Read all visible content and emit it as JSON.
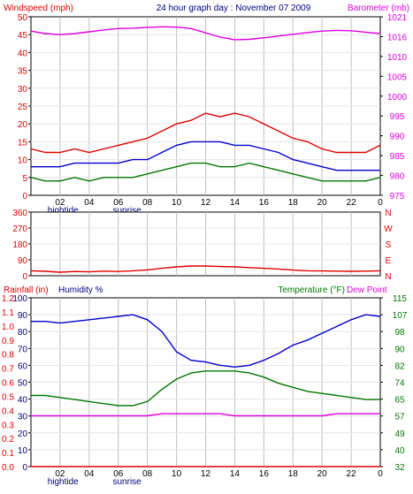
{
  "colors": {
    "background": "#ffffff",
    "plot_background": "#ffffff",
    "grid": "#c0c0c0",
    "frame": "#000000",
    "red": "#e00000",
    "blue": "#0000cc",
    "green": "#007700",
    "magenta": "#dd00dd",
    "darkblue": "#000080"
  },
  "chart_data": [
    {
      "type": "line",
      "title": "24 hour graph day : November 07 2009",
      "left_axis_label": "Windspeed (mph)",
      "right_axis_label": "Barometer (mb)",
      "ylim_left": [
        0,
        50
      ],
      "ylim_right": [
        975,
        1025
      ],
      "yticks_left": [
        "0",
        "5",
        "10",
        "15",
        "20",
        "25",
        "30",
        "35",
        "40",
        "45",
        "50"
      ],
      "yticks_right": [
        "975",
        "980",
        "985",
        "990",
        "995",
        "1000",
        "1005",
        "1010",
        "1016",
        "1021"
      ],
      "hour_ticks": [
        "02",
        "04",
        "06",
        "08",
        "10",
        "12",
        "14",
        "16",
        "18",
        "20",
        "22",
        "0"
      ],
      "events": [
        {
          "label": "hightide",
          "hour": 2.2
        },
        {
          "label": "sunrise",
          "hour": 6.6
        }
      ],
      "x": [
        0,
        1,
        2,
        3,
        4,
        5,
        6,
        7,
        8,
        9,
        10,
        11,
        12,
        13,
        14,
        15,
        16,
        17,
        18,
        19,
        20,
        21,
        22,
        23,
        24
      ],
      "series": [
        {
          "key": "gust",
          "color": "red",
          "axis": "left",
          "values": [
            13,
            12,
            12,
            13,
            12,
            13,
            14,
            15,
            16,
            18,
            20,
            21,
            23,
            22,
            23,
            22,
            20,
            18,
            16,
            15,
            13,
            12,
            12,
            12,
            14
          ]
        },
        {
          "key": "speed",
          "color": "blue",
          "axis": "left",
          "values": [
            8,
            8,
            8,
            9,
            9,
            9,
            9,
            10,
            10,
            12,
            14,
            15,
            15,
            15,
            14,
            14,
            13,
            12,
            10,
            9,
            8,
            7,
            7,
            7,
            7
          ]
        },
        {
          "key": "direction_avg",
          "color": "green",
          "axis": "left",
          "values": [
            5,
            4,
            4,
            5,
            4,
            5,
            5,
            5,
            6,
            7,
            8,
            9,
            9,
            8,
            8,
            9,
            8,
            7,
            6,
            5,
            4,
            4,
            4,
            4,
            5
          ]
        },
        {
          "key": "barometer",
          "color": "magenta",
          "axis": "right",
          "values": [
            1021.0,
            1020.3,
            1020.0,
            1020.3,
            1020.8,
            1021.3,
            1021.7,
            1021.8,
            1022.0,
            1022.2,
            1022.1,
            1021.7,
            1020.5,
            1019.3,
            1018.6,
            1018.7,
            1019.1,
            1019.6,
            1020.1,
            1020.6,
            1021.0,
            1021.2,
            1021.1,
            1020.7,
            1020.3
          ]
        }
      ]
    },
    {
      "type": "line",
      "title": "",
      "ylim_left": [
        0,
        360
      ],
      "yticks_left": [
        "0",
        "90",
        "180",
        "270",
        "360"
      ],
      "right_axis_letters": [
        "N",
        "W",
        "S",
        "E",
        "N"
      ],
      "x": [
        0,
        1,
        2,
        3,
        4,
        5,
        6,
        7,
        8,
        9,
        10,
        11,
        12,
        13,
        14,
        15,
        16,
        17,
        18,
        19,
        20,
        21,
        22,
        23,
        24
      ],
      "series": [
        {
          "key": "wind_direction",
          "color": "red",
          "values": [
            28,
            25,
            20,
            24,
            22,
            26,
            24,
            28,
            33,
            42,
            50,
            55,
            55,
            52,
            50,
            46,
            42,
            38,
            32,
            28,
            27,
            26,
            25,
            26,
            28
          ]
        }
      ]
    },
    {
      "type": "line",
      "title": "",
      "left_axis_label": "Rainfall (in)",
      "humidity_label": "Humidity %",
      "temperature_label": "Temperature (°F)",
      "dewpoint_label": "Dew Point",
      "ylim_rain": [
        0,
        1.2
      ],
      "ylim_humidity": [
        0,
        100
      ],
      "ylim_temperature": [
        32,
        115
      ],
      "yticks_rain": [
        "0.0",
        "0.1",
        "0.2",
        "0.3",
        "0.4",
        "0.5",
        "0.6",
        "0.7",
        "0.8",
        "0.9",
        "1.0",
        "1.1",
        "1.2"
      ],
      "yticks_humidity": [
        "0",
        "10",
        "20",
        "30",
        "40",
        "50",
        "60",
        "70",
        "80",
        "90",
        "100"
      ],
      "yticks_temperature": [
        "32",
        "40",
        "49",
        "57",
        "65",
        "74",
        "82",
        "90",
        "98",
        "107",
        "115"
      ],
      "hour_ticks": [
        "02",
        "04",
        "06",
        "08",
        "10",
        "12",
        "14",
        "16",
        "18",
        "20",
        "22",
        "0"
      ],
      "events": [
        {
          "label": "hightide",
          "hour": 2.2
        },
        {
          "label": "sunrise",
          "hour": 6.6
        }
      ],
      "x": [
        0,
        1,
        2,
        3,
        4,
        5,
        6,
        7,
        8,
        9,
        10,
        11,
        12,
        13,
        14,
        15,
        16,
        17,
        18,
        19,
        20,
        21,
        22,
        23,
        24
      ],
      "series": [
        {
          "key": "humidity",
          "color": "blue",
          "axis": "humidity",
          "values": [
            86,
            86,
            85,
            86,
            87,
            88,
            89,
            90,
            87,
            80,
            68,
            63,
            62,
            60,
            59,
            60,
            63,
            67,
            72,
            75,
            79,
            83,
            87,
            90,
            89
          ]
        },
        {
          "key": "temperature",
          "color": "green",
          "axis": "temperature",
          "values": [
            67,
            67,
            66,
            65,
            64,
            63,
            62,
            62,
            64,
            70,
            75,
            78,
            79,
            79,
            79,
            78,
            76,
            73,
            71,
            69,
            68,
            67,
            66,
            65,
            65
          ]
        },
        {
          "key": "dewpoint",
          "color": "magenta",
          "axis": "temperature",
          "values": [
            57,
            57,
            57,
            57,
            57,
            57,
            57,
            57,
            57,
            58,
            58,
            58,
            58,
            58,
            57,
            57,
            57,
            57,
            57,
            57,
            57,
            58,
            58,
            58,
            58
          ]
        },
        {
          "key": "rainfall",
          "color": "red",
          "axis": "rain",
          "values": [
            0,
            0,
            0,
            0,
            0,
            0,
            0,
            0,
            0,
            0,
            0,
            0,
            0,
            0,
            0,
            0,
            0,
            0,
            0,
            0,
            0,
            0,
            0,
            0,
            0
          ]
        }
      ]
    }
  ]
}
